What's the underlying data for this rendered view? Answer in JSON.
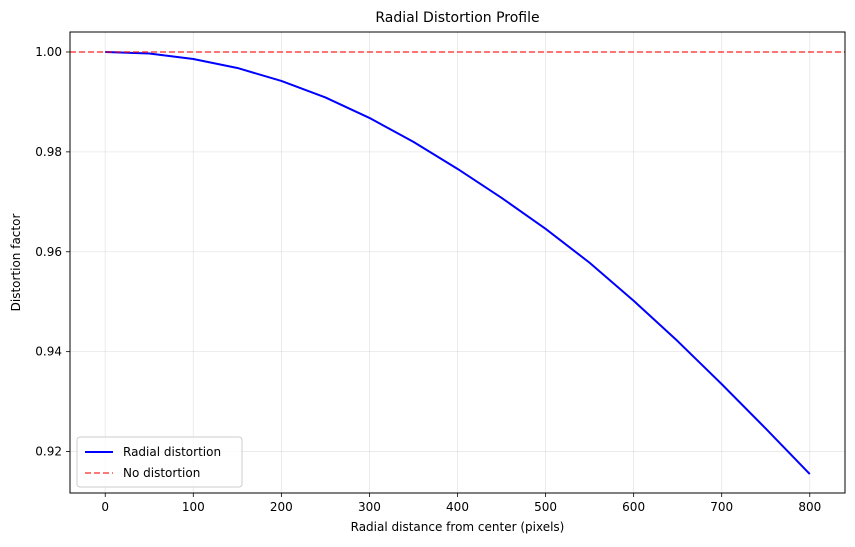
{
  "chart_data": {
    "type": "line",
    "title": "Radial Distortion Profile",
    "xlabel": "Radial distance from center (pixels)",
    "ylabel": "Distortion factor",
    "xlim": [
      -40,
      840
    ],
    "ylim": [
      0.9117,
      1.004
    ],
    "xticks": [
      0,
      100,
      200,
      300,
      400,
      500,
      600,
      700,
      800
    ],
    "yticks": [
      0.92,
      0.94,
      0.96,
      0.98,
      1.0
    ],
    "ytick_labels": [
      "0.92",
      "0.94",
      "0.96",
      "0.98",
      "1.00"
    ],
    "grid": true,
    "legend_position": "lower-left",
    "series": [
      {
        "name": "Radial distortion",
        "color": "#0000ff",
        "style": "solid",
        "x": [
          0,
          50,
          100,
          150,
          200,
          250,
          300,
          350,
          400,
          450,
          500,
          550,
          600,
          650,
          700,
          750,
          800
        ],
        "y": [
          1.0,
          0.9997,
          0.9986,
          0.9968,
          0.9942,
          0.9909,
          0.9868,
          0.982,
          0.9766,
          0.9708,
          0.9646,
          0.9578,
          0.9502,
          0.9421,
          0.9335,
          0.9246,
          0.9155
        ]
      },
      {
        "name": "No distortion",
        "color": "#ff0000",
        "style": "dashed",
        "y_constant": 1.0
      }
    ]
  }
}
